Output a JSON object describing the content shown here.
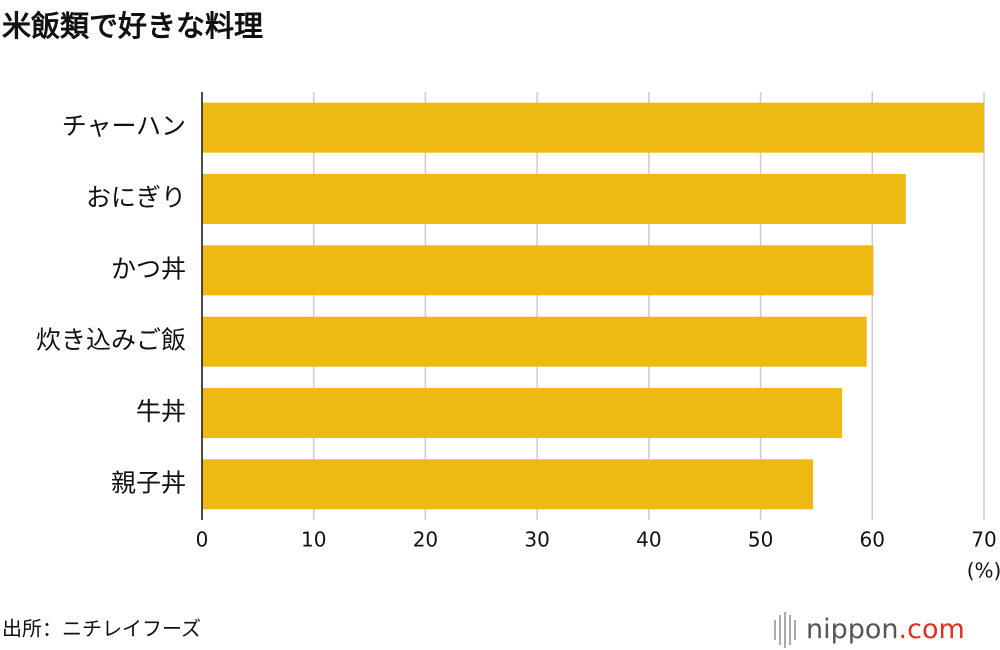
{
  "chart_data": {
    "type": "bar",
    "orientation": "horizontal",
    "title": "米飯類で好きな料理",
    "categories": [
      "チャーハン",
      "おにぎり",
      "かつ丼",
      "炊き込みご飯",
      "牛丼",
      "親子丼"
    ],
    "values": [
      70.0,
      63.0,
      60.1,
      59.5,
      57.3,
      54.7
    ],
    "color": "#efb914",
    "xlim": [
      0,
      70
    ],
    "xticks": [
      0,
      10,
      20,
      30,
      40,
      50,
      60,
      70
    ],
    "x_unit": "(%)",
    "grid": true,
    "source": "出所：ニチレイフーズ",
    "brand": {
      "name": "nippon",
      "suffix": ".com",
      "suffix_color": "#e0301e"
    }
  }
}
